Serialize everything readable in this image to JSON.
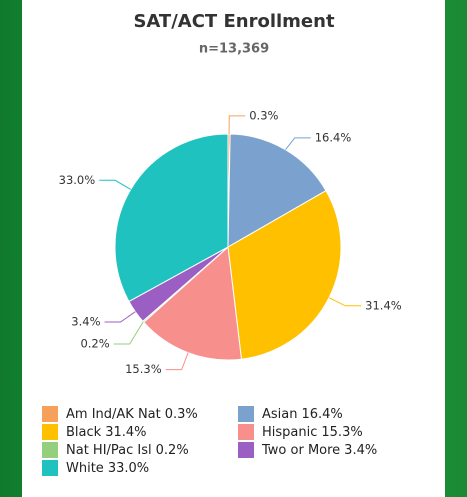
{
  "chart_data": {
    "type": "pie",
    "title": "SAT/ACT Enrollment",
    "subtitle": "n=13,369",
    "categories": [
      "Am Ind/AK Nat",
      "Asian",
      "Black",
      "Hispanic",
      "Nat HI/Pac Isl",
      "Two or More",
      "White"
    ],
    "values": [
      0.3,
      16.4,
      31.4,
      15.3,
      0.2,
      3.4,
      33.0
    ],
    "value_labels": [
      "0.3%",
      "16.4%",
      "31.4%",
      "15.3%",
      "0.2%",
      "3.4%",
      "33.0%"
    ],
    "colors": [
      "#f5a15a",
      "#7ba2cf",
      "#ffc000",
      "#f78f8c",
      "#93cf7d",
      "#9b5fc4",
      "#1fc2bf"
    ],
    "legend": "bottom"
  }
}
